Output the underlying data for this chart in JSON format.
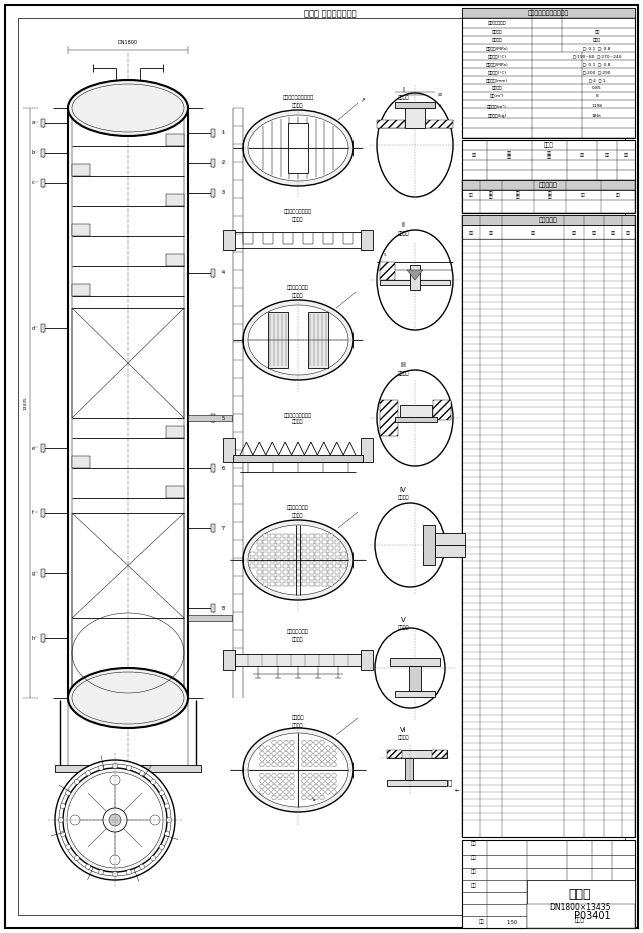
{
  "title": "成品塔",
  "subtitle": "DN1800×13435",
  "drawing_type": "流程图",
  "drawing_number": "P03401",
  "bg_color": "#ffffff",
  "line_color": "#000000",
  "fig_width": 6.43,
  "fig_height": 9.33,
  "dpi": 100,
  "detail1_label": "塔平板人孔俧视图细部",
  "detail1_sublabel": "不锈钔制",
  "detail2_label": "塔盘液体溢流堰细部",
  "detail2_sublabel": "不锈钔制",
  "detail3_label": "塔盘俧视图细部",
  "detail3_sublabel": "不锈钔制",
  "detail4_label": "进气分布器支撑细部",
  "detail4_sublabel": "不锈钔制",
  "detail5_label": "塔盘俧视图细部2",
  "detail5_sublabel": "不锈钔制",
  "detail6_label": "液体分布器细部",
  "detail6_sublabel": "不锈钔制",
  "detail7_label": "管箕细部",
  "detail7_sublabel": "不锈钔制"
}
